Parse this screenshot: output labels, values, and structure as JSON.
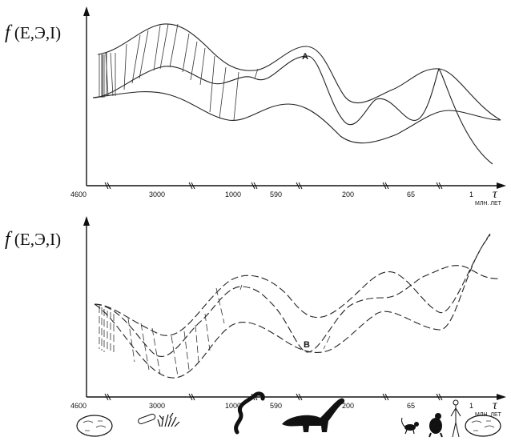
{
  "panels": [
    {
      "y_label": {
        "italic": "f",
        "rest": " (E,Э,I)"
      },
      "point_label": "A",
      "ticks": [
        "4600",
        "3000",
        "1000",
        "590",
        "200",
        "65",
        "1"
      ],
      "axis_symbol": "τ",
      "unit": "МЛН. ЛЕТ"
    },
    {
      "y_label": {
        "italic": "f",
        "rest": " (E,Э,I)"
      },
      "point_label": "B",
      "ticks": [
        "4600",
        "3000",
        "1000",
        "590",
        "200",
        "65",
        "1"
      ],
      "axis_symbol": "τ",
      "unit": "МЛН. ЛЕТ"
    }
  ],
  "icons": [
    "cell-icon",
    "bacteria-icon",
    "algae-icon",
    "worm-icon",
    "dinosaur-icon",
    "monkey-icon",
    "ape-icon",
    "human-icon",
    "cell-icon"
  ]
}
